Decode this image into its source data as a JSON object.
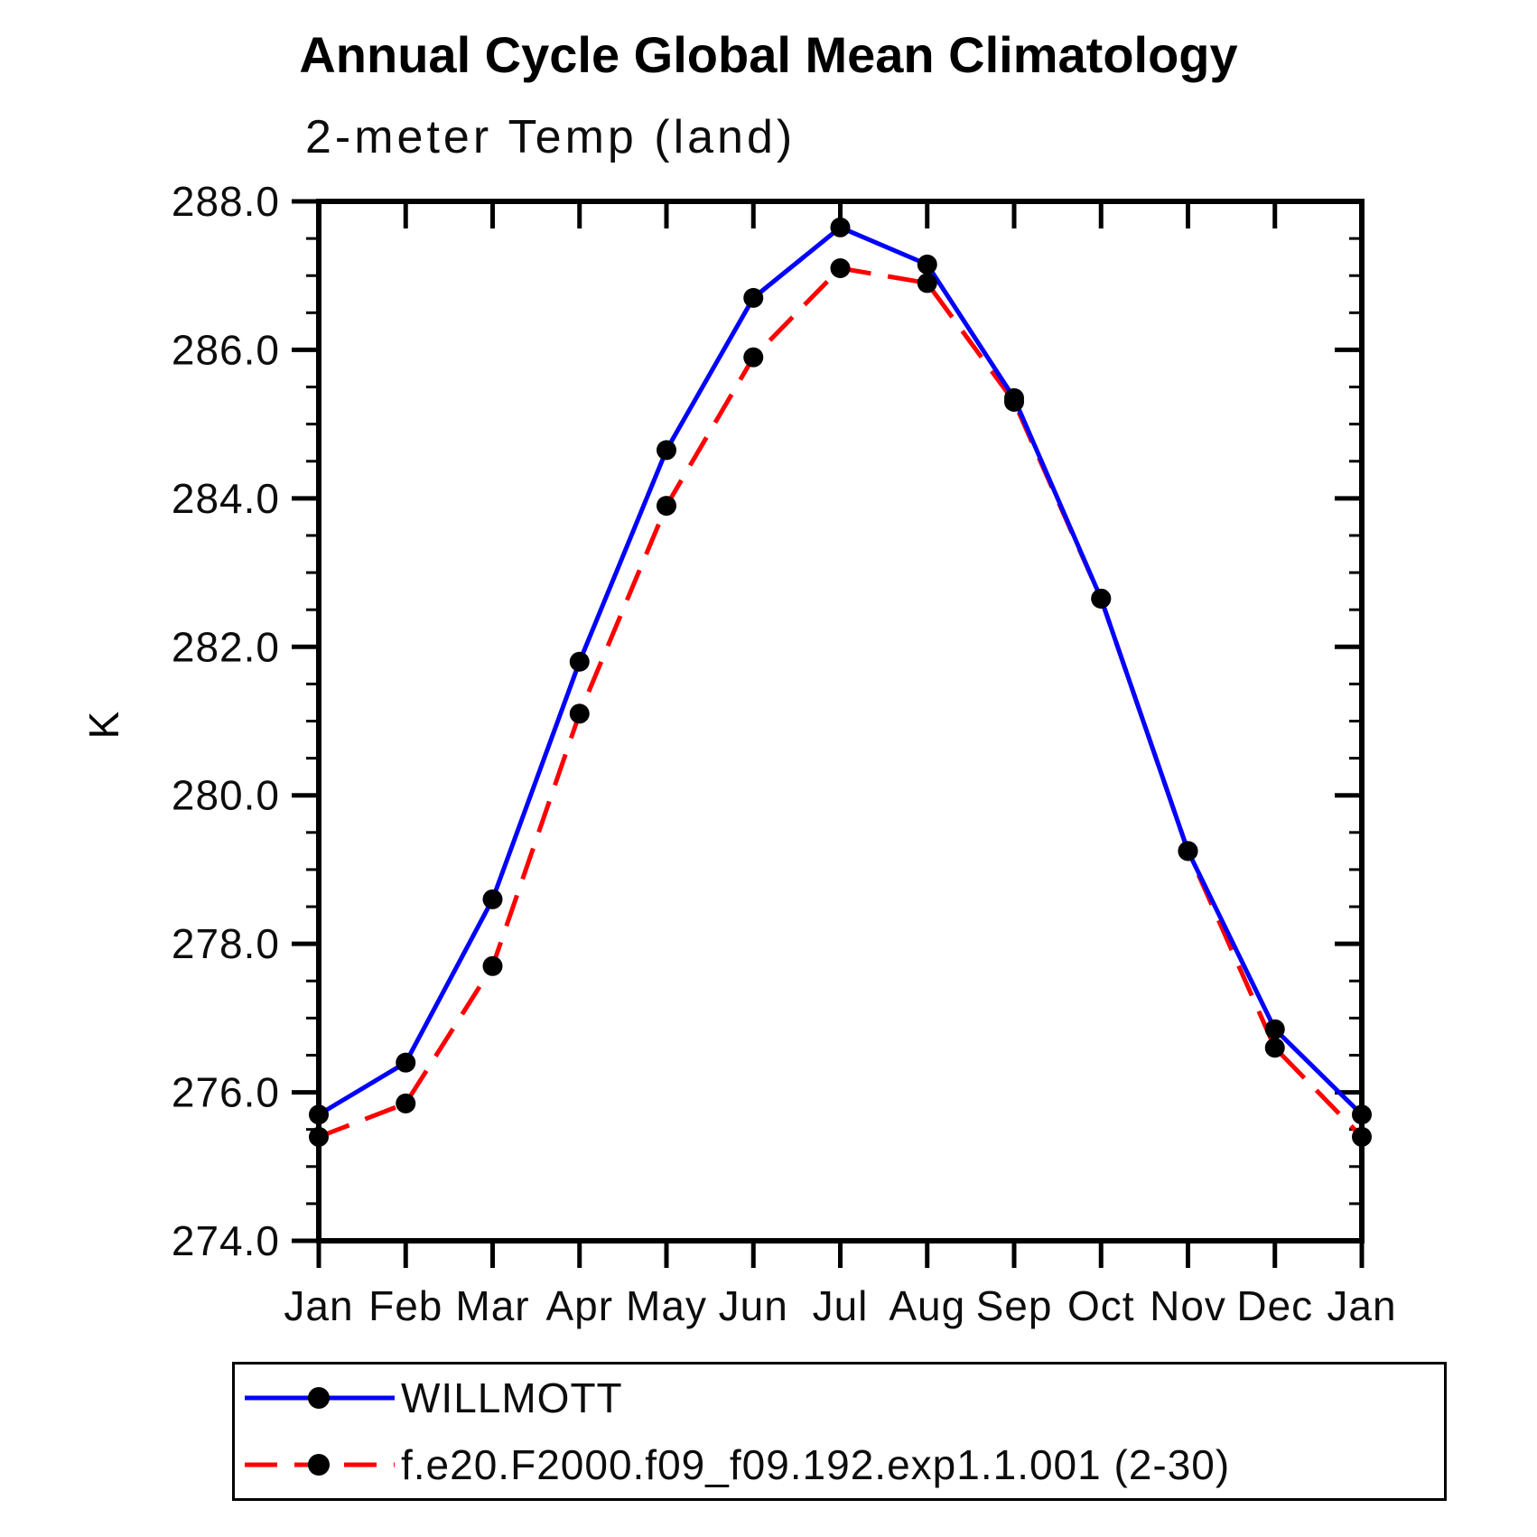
{
  "title": "Annual Cycle Global Mean Climatology",
  "subtitle": "2-meter Temp (land)",
  "y_axis_label": "K",
  "legend": {
    "items": [
      {
        "label": "WILLMOTT",
        "color": "#0000ff",
        "dash": "solid"
      },
      {
        "label": "f.e20.F2000.f09_f09.192.exp1.1.001 (2-30)",
        "color": "#ff0000",
        "dash": "dashed"
      }
    ]
  },
  "chart_data": {
    "type": "line",
    "title": "Annual Cycle Global Mean Climatology",
    "subtitle": "2-meter Temp (land)",
    "xlabel": "",
    "ylabel": "K",
    "x_tick_labels": [
      "Jan",
      "Feb",
      "Mar",
      "Apr",
      "May",
      "Jun",
      "Jul",
      "Aug",
      "Sep",
      "Oct",
      "Nov",
      "Dec",
      "Jan"
    ],
    "ylim": [
      274.0,
      288.0
    ],
    "y_major_step": 2.0,
    "y_minor_step": 0.5,
    "y_tick_decimals": 1,
    "grid": false,
    "legend_position": "below",
    "marker": {
      "shape": "circle",
      "color": "#000000",
      "radius": 11
    },
    "axis_color": "#000000",
    "series": [
      {
        "name": "WILLMOTT",
        "color": "#0000ff",
        "dash": "solid",
        "values": [
          275.7,
          276.4,
          278.6,
          281.8,
          284.65,
          286.7,
          287.65,
          287.15,
          285.35,
          282.65,
          279.25,
          276.85,
          275.7
        ]
      },
      {
        "name": "f.e20.F2000.f09_f09.192.exp1.1.001 (2-30)",
        "color": "#ff0000",
        "dash": "dashed",
        "values": [
          275.4,
          275.85,
          277.7,
          281.1,
          283.9,
          285.9,
          287.1,
          286.9,
          285.3,
          282.65,
          279.25,
          276.6,
          275.4
        ]
      }
    ]
  }
}
